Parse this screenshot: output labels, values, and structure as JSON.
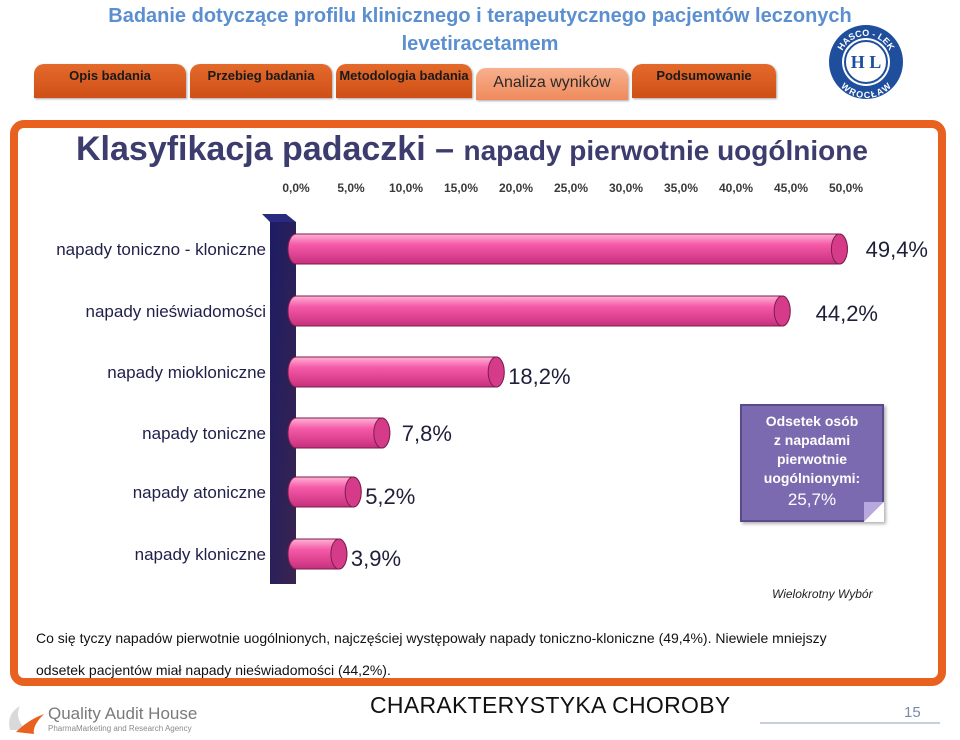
{
  "header": {
    "title": "Badanie dotyczące profilu klinicznego i terapeutycznego pacjentów leczonych levetiracetamem"
  },
  "tabs": [
    {
      "label": "Opis badania"
    },
    {
      "label": "Przebieg badania"
    },
    {
      "label": "Metodologia badania"
    },
    {
      "label": "Analiza wyników",
      "active": true
    },
    {
      "label": "Podsumowanie"
    }
  ],
  "logo": {
    "top": "HASCO - LEK",
    "bottom": "WROCŁAW",
    "mark": "H L"
  },
  "slide": {
    "title_bold": "Klasyfikacja padaczki",
    "title_dash": " – ",
    "title_rest": "napady pierwotnie uogólnione"
  },
  "colors": {
    "bar": "#ee4fa0",
    "bar_light": "#ff9ccb",
    "bar_cap": "#c4317c",
    "axis_wall": "#1a1a5c",
    "accent": "#e8611f",
    "callout": "#7c6ab0"
  },
  "chart_data": {
    "type": "bar",
    "orientation": "horizontal",
    "style": "3d-cylinder",
    "categories": [
      "napady toniczno - kloniczne",
      "napady nieświadomości",
      "napady miokloniczne",
      "napady toniczne",
      "napady atoniczne",
      "napady kloniczne"
    ],
    "values": [
      49.4,
      44.2,
      18.2,
      7.8,
      5.2,
      3.9
    ],
    "value_labels": [
      "49,4%",
      "44,2%",
      "18,2%",
      "7,8%",
      "5,2%",
      "3,9%"
    ],
    "xlim": [
      0,
      50
    ],
    "xticks": [
      0,
      5,
      10,
      15,
      20,
      25,
      30,
      35,
      40,
      45,
      50
    ],
    "xtick_labels": [
      "0,0%",
      "5,0%",
      "10,0%",
      "15,0%",
      "20,0%",
      "25,0%",
      "30,0%",
      "35,0%",
      "40,0%",
      "45,0%",
      "50,0%"
    ],
    "axis_position": "top",
    "grid": false
  },
  "callout": {
    "lines": [
      "Odsetek osób",
      "z napadami",
      "pierwotnie",
      "uogólnionymi:"
    ],
    "value": "25,7%"
  },
  "note": "Wielokrotny Wybór",
  "summary": {
    "line1": "Co się tyczy napadów pierwotnie uogólnionych, najczęściej występowały napady toniczno-kloniczne (49,4%). Niewiele mniejszy",
    "line2": "odsetek pacjentów miał napady nieświadomości (44,2%)."
  },
  "footer": {
    "company": "Quality Audit House",
    "company_sub": "PharmaMarketing and Research Agency",
    "title": "CHARAKTERYSTYKA CHOROBY",
    "page": "15"
  }
}
